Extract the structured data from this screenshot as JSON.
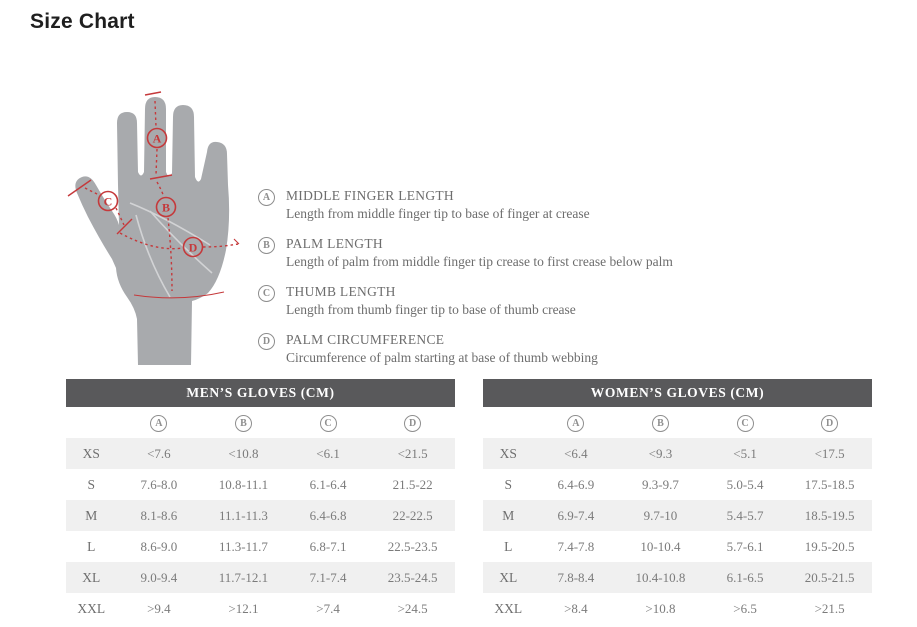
{
  "page": {
    "title": "Size Chart"
  },
  "colors": {
    "table_header_bg": "#59595b",
    "row_shade": "#f0f0f0",
    "hand_fill": "#a8aaad",
    "annotation_red": "#c5393b",
    "text_gray": "#6d6d6d"
  },
  "diagram": {
    "labels": [
      "A",
      "B",
      "C",
      "D"
    ],
    "legend": [
      {
        "letter": "A",
        "title": "MIDDLE FINGER LENGTH",
        "description": "Length from middle finger tip to base of finger at crease"
      },
      {
        "letter": "B",
        "title": "PALM LENGTH",
        "description": "Length of palm from middle finger tip crease to first crease below palm"
      },
      {
        "letter": "C",
        "title": "THUMB LENGTH",
        "description": "Length from thumb finger tip to base of thumb crease"
      },
      {
        "letter": "D",
        "title": "PALM CIRCUMFERENCE",
        "description": "Circumference of palm starting at base of thumb webbing"
      }
    ]
  },
  "tables": [
    {
      "title": "MEN’S GLOVES (CM)",
      "columns": [
        "A",
        "B",
        "C",
        "D"
      ],
      "rows": [
        {
          "size": "XS",
          "values": [
            "<7.6",
            "<10.8",
            "<6.1",
            "<21.5"
          ]
        },
        {
          "size": "S",
          "values": [
            "7.6-8.0",
            "10.8-11.1",
            "6.1-6.4",
            "21.5-22"
          ]
        },
        {
          "size": "M",
          "values": [
            "8.1-8.6",
            "11.1-11.3",
            "6.4-6.8",
            "22-22.5"
          ]
        },
        {
          "size": "L",
          "values": [
            "8.6-9.0",
            "11.3-11.7",
            "6.8-7.1",
            "22.5-23.5"
          ]
        },
        {
          "size": "XL",
          "values": [
            "9.0-9.4",
            "11.7-12.1",
            "7.1-7.4",
            "23.5-24.5"
          ]
        },
        {
          "size": "XXL",
          "values": [
            ">9.4",
            ">12.1",
            ">7.4",
            ">24.5"
          ]
        }
      ]
    },
    {
      "title": "WOMEN’S GLOVES (CM)",
      "columns": [
        "A",
        "B",
        "C",
        "D"
      ],
      "rows": [
        {
          "size": "XS",
          "values": [
            "<6.4",
            "<9.3",
            "<5.1",
            "<17.5"
          ]
        },
        {
          "size": "S",
          "values": [
            "6.4-6.9",
            "9.3-9.7",
            "5.0-5.4",
            "17.5-18.5"
          ]
        },
        {
          "size": "M",
          "values": [
            "6.9-7.4",
            "9.7-10",
            "5.4-5.7",
            "18.5-19.5"
          ]
        },
        {
          "size": "L",
          "values": [
            "7.4-7.8",
            "10-10.4",
            "5.7-6.1",
            "19.5-20.5"
          ]
        },
        {
          "size": "XL",
          "values": [
            "7.8-8.4",
            "10.4-10.8",
            "6.1-6.5",
            "20.5-21.5"
          ]
        },
        {
          "size": "XXL",
          "values": [
            ">8.4",
            ">10.8",
            ">6.5",
            ">21.5"
          ]
        }
      ]
    }
  ]
}
